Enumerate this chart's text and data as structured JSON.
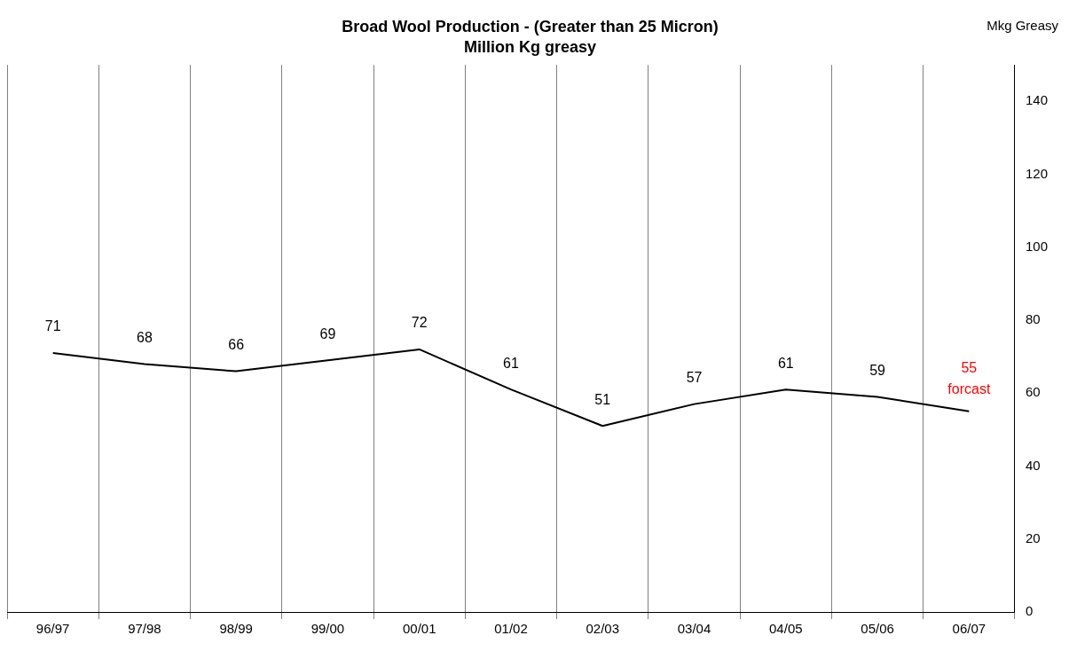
{
  "chart_data": {
    "type": "line",
    "title": "Broad Wool Production - (Greater than 25 Micron)",
    "subtitle": "Million Kg greasy",
    "ylabel": "Mkg Greasy",
    "categories": [
      "96/97",
      "97/98",
      "98/99",
      "99/00",
      "00/01",
      "01/02",
      "02/03",
      "03/04",
      "04/05",
      "05/06",
      "06/07"
    ],
    "series": [
      {
        "color": "#000000",
        "values": [
          71,
          68,
          66,
          69,
          72,
          61,
          51,
          57,
          61,
          59,
          55
        ]
      }
    ],
    "ylim": [
      0,
      150
    ],
    "yticks": [
      0,
      20,
      40,
      60,
      80,
      100,
      120,
      140
    ],
    "grid": "x",
    "data_labels": true,
    "marker": "none",
    "line_style": "solid",
    "legend": false,
    "annotations": [
      {
        "text": "forcast",
        "x": "06/07",
        "y": 55
      }
    ]
  }
}
